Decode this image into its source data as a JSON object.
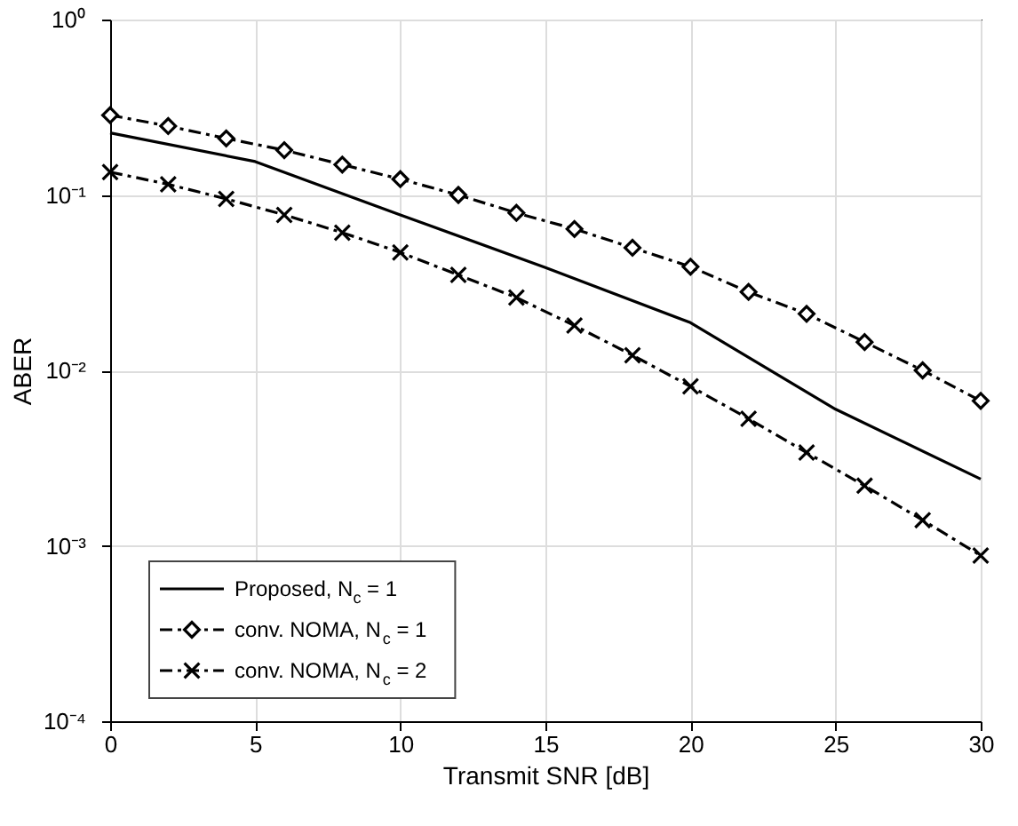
{
  "chart_data": {
    "type": "line",
    "xlabel": "Transmit SNR [dB]",
    "ylabel": "ABER",
    "log": "y",
    "grid": true,
    "legend": "bottom left",
    "xlim": [
      0,
      30
    ],
    "xticks": [
      0,
      5,
      10,
      15,
      20,
      25,
      30
    ],
    "ylim": [
      0.0001,
      1
    ],
    "yticks": [
      {
        "value": 0.0001,
        "label": "10⁻⁴"
      },
      {
        "value": 0.001,
        "label": "10⁻³"
      },
      {
        "value": 0.01,
        "label": "10⁻²"
      },
      {
        "value": 0.1,
        "label": "10⁻¹"
      },
      {
        "value": 1,
        "label": "10⁰"
      }
    ],
    "series": [
      {
        "name": "Proposed, N$_{c}$ = 1",
        "color": "#000000",
        "marker": "none",
        "line_style": "solid",
        "x": [
          0,
          5,
          10,
          15,
          20,
          25,
          30
        ],
        "values": [
          0.226,
          0.155,
          0.077,
          0.0386,
          0.0187,
          0.006,
          0.0024
        ]
      },
      {
        "name": "conv. NOMA, N$_{c}$ = 1",
        "color": "#000000",
        "marker": "diamond",
        "line_style": "dashed",
        "x": [
          0,
          2,
          4,
          6,
          8,
          10,
          12,
          14,
          16,
          18,
          20,
          22,
          24,
          26,
          28,
          30
        ],
        "values": [
          0.285,
          0.247,
          0.21,
          0.18,
          0.149,
          0.123,
          0.1,
          0.079,
          0.064,
          0.05,
          0.039,
          0.028,
          0.021,
          0.0145,
          0.01,
          0.0067
        ]
      },
      {
        "name": "conv. NOMA, N$_{c}$ = 2",
        "color": "#000000",
        "marker": "cross",
        "line_style": "dashed",
        "x": [
          0,
          2,
          4,
          6,
          8,
          10,
          12,
          14,
          16,
          18,
          20,
          22,
          24,
          26,
          28,
          30
        ],
        "values": [
          0.135,
          0.115,
          0.095,
          0.077,
          0.061,
          0.047,
          0.035,
          0.026,
          0.018,
          0.0122,
          0.0081,
          0.0053,
          0.0034,
          0.0022,
          0.0014,
          0.00088
        ]
      }
    ]
  }
}
